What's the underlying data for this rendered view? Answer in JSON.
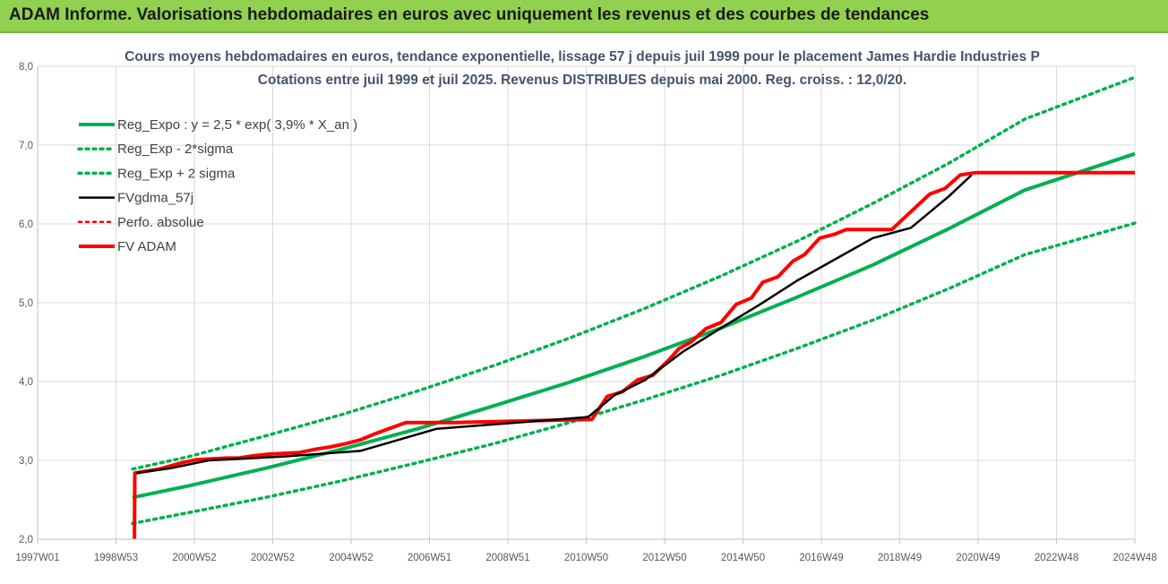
{
  "header": {
    "title": "ADAM Informe. Valorisations hebdomadaires en euros avec uniquement les revenus et des courbes de tendances"
  },
  "chart_data": {
    "type": "line",
    "title": "Cours moyens hebdomadaires en euros, tendance exponentielle, lissage 57 j depuis juil 1999 pour le placement James Hardie Industries P",
    "subtitle": "Cotations entre juil 1999 et juil 2025. Revenus DISTRIBUES depuis mai 2000. Reg. croiss. : 12,0/20.",
    "xlabel": "",
    "ylabel": "",
    "ylim": [
      2.0,
      8.0
    ],
    "yticks": [
      "2,0",
      "3,0",
      "4,0",
      "5,0",
      "6,0",
      "7,0",
      "8,0"
    ],
    "xticks": [
      "1997W01",
      "1998W53",
      "2000W52",
      "2002W52",
      "2004W52",
      "2006W51",
      "2008W51",
      "2010W50",
      "2012W50",
      "2014W50",
      "2016W49",
      "2018W49",
      "2020W49",
      "2022W48",
      "2024W48"
    ],
    "x_range": [
      1997.0,
      2025.9
    ],
    "legend_position": "top-left",
    "grid": true,
    "series": [
      {
        "name": "Reg_Expo : y = 2,5 * exp( 3,9% *  X_an )",
        "color": "#00b050",
        "style": "solid",
        "x": [
          1999.5,
          2001.0,
          2003.0,
          2005.0,
          2007.0,
          2009.0,
          2011.0,
          2013.0,
          2015.0,
          2017.0,
          2019.0,
          2021.0,
          2023.0,
          2025.9
        ],
        "values": [
          2.53,
          2.68,
          2.9,
          3.14,
          3.4,
          3.69,
          3.99,
          4.32,
          4.68,
          5.07,
          5.48,
          5.94,
          6.43,
          6.89
        ]
      },
      {
        "name": "Reg_Exp - 2*sigma",
        "color": "#00b050",
        "style": "dotted",
        "x": [
          1999.5,
          2001.0,
          2003.0,
          2005.0,
          2007.0,
          2009.0,
          2011.0,
          2013.0,
          2015.0,
          2017.0,
          2019.0,
          2021.0,
          2023.0,
          2025.9
        ],
        "values": [
          2.2,
          2.34,
          2.53,
          2.74,
          2.97,
          3.21,
          3.48,
          3.77,
          4.08,
          4.42,
          4.78,
          5.18,
          5.61,
          6.01
        ]
      },
      {
        "name": "Reg_Exp + 2 sigma",
        "color": "#00b050",
        "style": "dotted",
        "x": [
          1999.5,
          2001.0,
          2003.0,
          2005.0,
          2007.0,
          2009.0,
          2011.0,
          2013.0,
          2015.0,
          2017.0,
          2019.0,
          2021.0,
          2023.0,
          2025.9
        ],
        "values": [
          2.89,
          3.05,
          3.31,
          3.58,
          3.88,
          4.2,
          4.55,
          4.93,
          5.34,
          5.78,
          6.26,
          6.77,
          7.33,
          7.86
        ]
      },
      {
        "name": "FVgdma_57j",
        "color": "#000000",
        "style": "solid",
        "x": [
          1999.6,
          2000.5,
          2001.5,
          2003.5,
          2005.5,
          2007.5,
          2011.5,
          2012.2,
          2013.0,
          2014.0,
          2015.0,
          2016.0,
          2017.0,
          2018.0,
          2019.0,
          2020.0,
          2021.0,
          2021.6
        ],
        "values": [
          2.84,
          2.9,
          3.0,
          3.05,
          3.12,
          3.4,
          3.55,
          3.83,
          4.02,
          4.38,
          4.68,
          4.97,
          5.28,
          5.55,
          5.82,
          5.95,
          6.35,
          6.62
        ]
      },
      {
        "name": "Perfo. absolue",
        "color": "#ff0000",
        "style": "dotted",
        "x": [],
        "values": []
      },
      {
        "name": "FV ADAM",
        "color": "#ff0000",
        "style": "solid",
        "x": [
          1999.55,
          1999.56,
          2000.2,
          2000.5,
          2000.8,
          2001.2,
          2001.6,
          2002.0,
          2002.3,
          2002.7,
          2003.1,
          2003.5,
          2003.9,
          2004.3,
          2004.7,
          2005.1,
          2005.5,
          2005.9,
          2006.3,
          2006.7,
          2007.1,
          2007.5,
          2008.0,
          2011.6,
          2012.0,
          2012.4,
          2012.8,
          2013.2,
          2013.6,
          2013.9,
          2014.2,
          2014.6,
          2015.0,
          2015.4,
          2015.8,
          2016.1,
          2016.5,
          2016.9,
          2017.2,
          2017.6,
          2018.0,
          2018.3,
          2018.7,
          2019.1,
          2019.5,
          2020.5,
          2020.9,
          2021.3,
          2021.7,
          2025.9
        ],
        "values": [
          2.0,
          2.84,
          2.89,
          2.93,
          2.97,
          3.01,
          3.02,
          3.03,
          3.03,
          3.06,
          3.08,
          3.09,
          3.1,
          3.14,
          3.17,
          3.21,
          3.26,
          3.34,
          3.41,
          3.48,
          3.48,
          3.48,
          3.48,
          3.52,
          3.81,
          3.87,
          4.02,
          4.08,
          4.26,
          4.42,
          4.5,
          4.67,
          4.75,
          4.98,
          5.06,
          5.26,
          5.33,
          5.53,
          5.61,
          5.82,
          5.87,
          5.93,
          5.93,
          5.93,
          5.93,
          6.38,
          6.45,
          6.62,
          6.65,
          6.65
        ]
      }
    ]
  }
}
